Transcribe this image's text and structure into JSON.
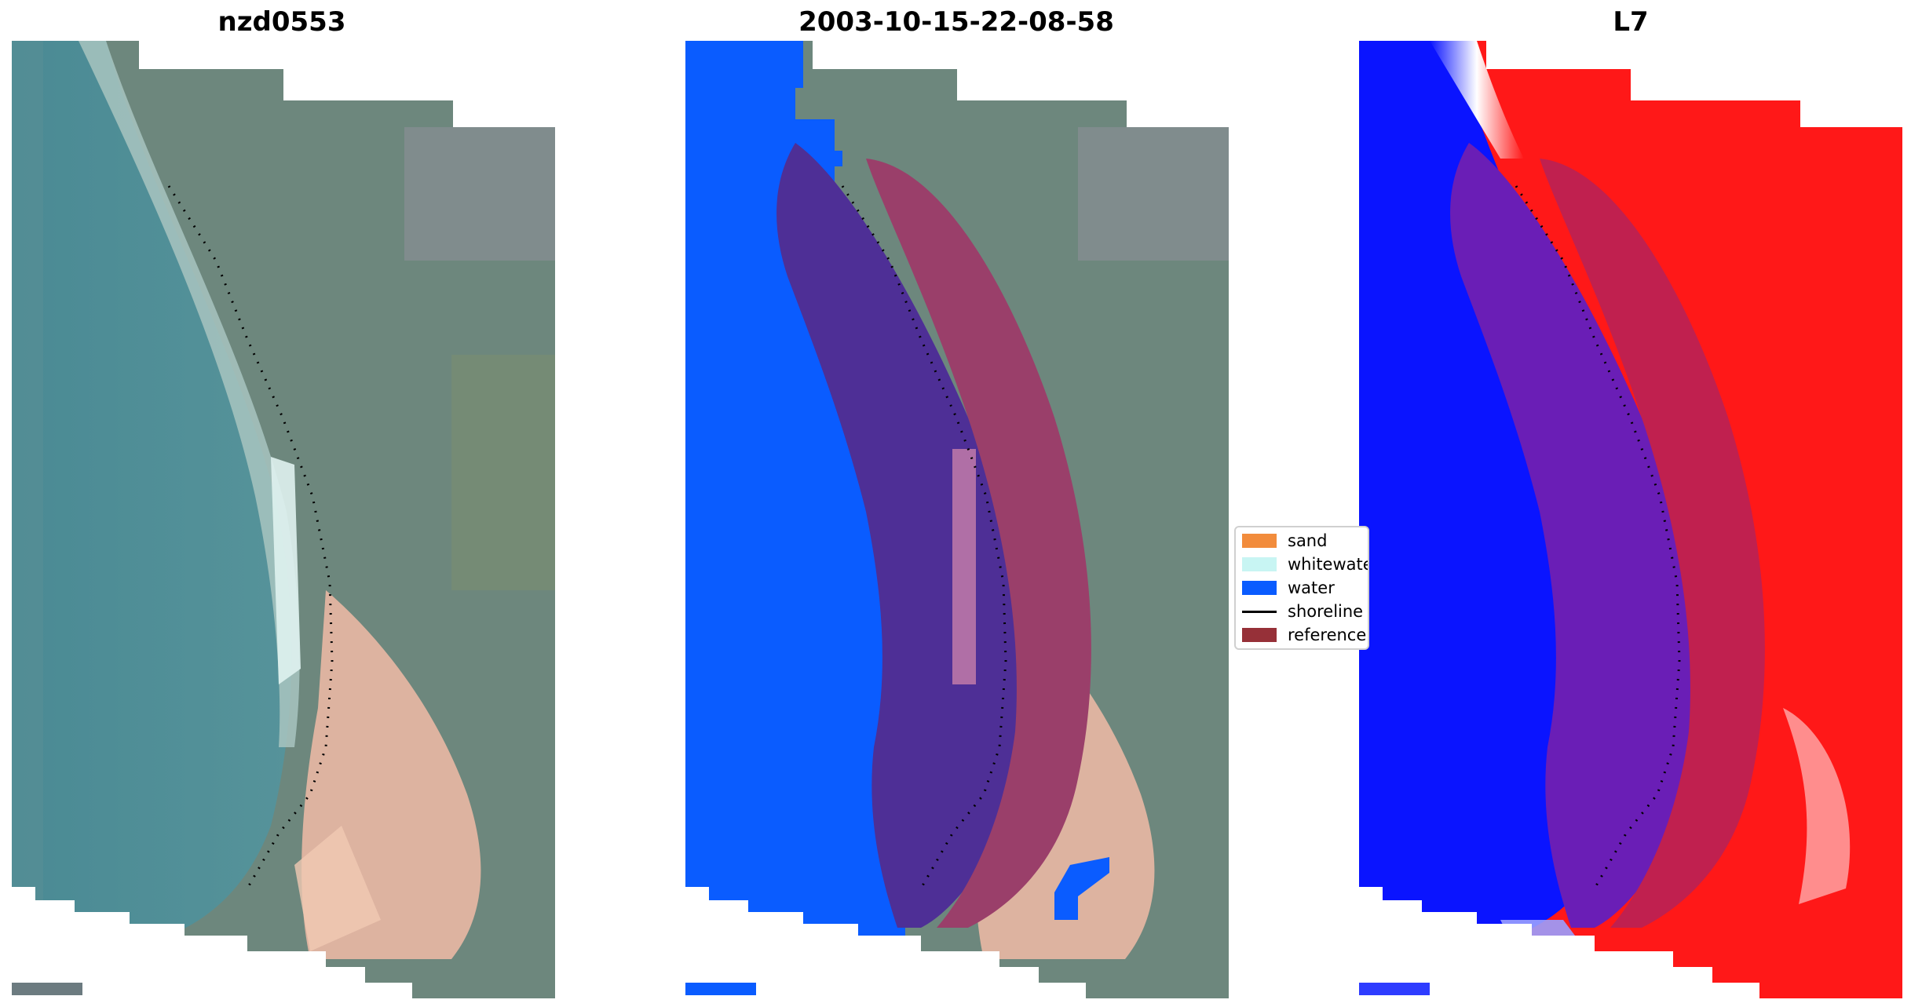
{
  "panels": [
    {
      "title": "nzd0553",
      "kind": "rgb"
    },
    {
      "title": "2003-10-15-22-08-58",
      "kind": "classified"
    },
    {
      "title": "L7",
      "kind": "index"
    }
  ],
  "legend": {
    "items": [
      {
        "label": "sand",
        "color": "#f28c3c",
        "type": "patch"
      },
      {
        "label": "whitewater",
        "color": "#c8f5f3",
        "type": "patch"
      },
      {
        "label": "water",
        "color": "#0a5cff",
        "type": "patch"
      },
      {
        "label": "shoreline",
        "color": "#000000",
        "type": "line"
      },
      {
        "label": "reference",
        "color": "#963038",
        "type": "patch"
      }
    ]
  },
  "colors": {
    "sea": "#4e8d95",
    "land": "#6f8a80",
    "water_class": "#0a5cff",
    "reference_overlay": "#7a2a7a",
    "index_low": "#0a14ff",
    "index_high": "#ff1818"
  }
}
